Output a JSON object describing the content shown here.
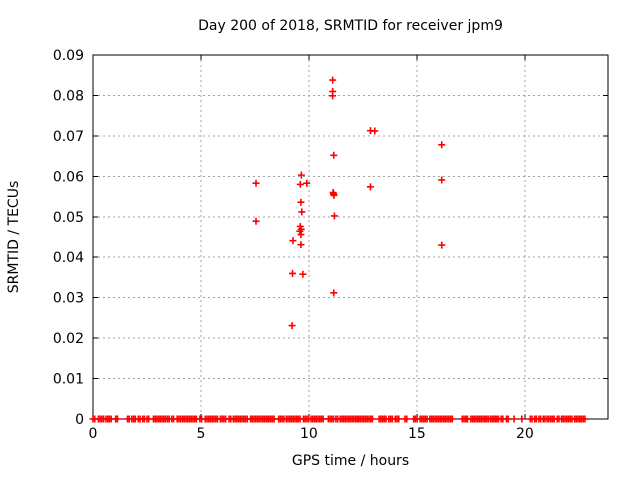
{
  "chart_data": {
    "type": "scatter",
    "title": "Day 200 of 2018, SRMTID for receiver jpm9",
    "xlabel": "GPS time / hours",
    "ylabel": "SRMTID / TECUs",
    "xlim": [
      0,
      23.85
    ],
    "ylim": [
      0,
      0.09
    ],
    "x_ticks": [
      0,
      5,
      10,
      15,
      20
    ],
    "x_tick_labels": [
      "0",
      "5",
      "10",
      "15",
      "20"
    ],
    "y_ticks": [
      0,
      0.01,
      0.02,
      0.03,
      0.04,
      0.05,
      0.06,
      0.07,
      0.08,
      0.09
    ],
    "y_tick_labels": [
      "0",
      "0.01",
      "0.02",
      "0.03",
      "0.04",
      "0.05",
      "0.06",
      "0.07",
      "0.08",
      "0.09"
    ],
    "grid": true,
    "legend": "none",
    "marker": "plus",
    "marker_color": "#ff0000",
    "grid_color": "#a0a0a0",
    "border_color": "#000000",
    "points": [
      [
        7.55,
        0.0583
      ],
      [
        7.55,
        0.0489
      ],
      [
        9.22,
        0.0231
      ],
      [
        9.24,
        0.036
      ],
      [
        9.72,
        0.0358
      ],
      [
        9.26,
        0.0441
      ],
      [
        9.63,
        0.0431
      ],
      [
        9.58,
        0.0464
      ],
      [
        9.6,
        0.0476
      ],
      [
        9.64,
        0.0469
      ],
      [
        9.63,
        0.0456
      ],
      [
        9.67,
        0.0512
      ],
      [
        9.63,
        0.0536
      ],
      [
        9.6,
        0.058
      ],
      [
        9.9,
        0.0583
      ],
      [
        9.65,
        0.0603
      ],
      [
        11.1,
        0.0838
      ],
      [
        11.1,
        0.081
      ],
      [
        11.1,
        0.0799
      ],
      [
        11.15,
        0.0652
      ],
      [
        11.12,
        0.056
      ],
      [
        11.14,
        0.0557
      ],
      [
        11.16,
        0.0553
      ],
      [
        11.18,
        0.0502
      ],
      [
        11.15,
        0.0312
      ],
      [
        12.85,
        0.0713
      ],
      [
        12.85,
        0.0574
      ],
      [
        13.05,
        0.0712
      ],
      [
        16.15,
        0.0678
      ],
      [
        16.15,
        0.0591
      ],
      [
        16.15,
        0.043
      ]
    ],
    "baseline": {
      "y": 0,
      "segments": [
        [
          0.0,
          0.1
        ],
        [
          0.25,
          0.5
        ],
        [
          0.6,
          0.85
        ],
        [
          1.05,
          1.15
        ],
        [
          1.6,
          1.7
        ],
        [
          1.8,
          2.0
        ],
        [
          2.1,
          2.2
        ],
        [
          2.3,
          2.4
        ],
        [
          2.5,
          2.65
        ],
        [
          2.8,
          3.4
        ],
        [
          3.45,
          3.55
        ],
        [
          3.65,
          3.8
        ],
        [
          3.9,
          4.1
        ],
        [
          4.15,
          4.85
        ],
        [
          4.95,
          5.1
        ],
        [
          5.2,
          5.8
        ],
        [
          5.9,
          6.2
        ],
        [
          6.3,
          6.4
        ],
        [
          6.5,
          7.2
        ],
        [
          7.3,
          8.1
        ],
        [
          8.15,
          8.45
        ],
        [
          8.6,
          8.9
        ],
        [
          8.95,
          9.65
        ],
        [
          9.75,
          10.0
        ],
        [
          10.1,
          10.7
        ],
        [
          10.9,
          11.15
        ],
        [
          11.25,
          11.35
        ],
        [
          11.45,
          11.55
        ],
        [
          11.6,
          12.25
        ],
        [
          12.3,
          12.95
        ],
        [
          13.25,
          13.6
        ],
        [
          13.7,
          13.9
        ],
        [
          14.0,
          14.2
        ],
        [
          14.45,
          14.6
        ],
        [
          14.85,
          15.05
        ],
        [
          15.15,
          15.5
        ],
        [
          15.6,
          16.65
        ],
        [
          17.1,
          17.35
        ],
        [
          17.5,
          18.25
        ],
        [
          18.3,
          18.36
        ],
        [
          18.4,
          18.5
        ],
        [
          18.55,
          18.65
        ],
        [
          18.7,
          18.8
        ],
        [
          18.9,
          19.05
        ],
        [
          19.15,
          19.25
        ],
        [
          19.5,
          19.52
        ],
        [
          19.86,
          19.9
        ],
        [
          20.25,
          20.35
        ],
        [
          20.45,
          20.55
        ],
        [
          20.65,
          20.75
        ],
        [
          20.85,
          20.95
        ],
        [
          21.03,
          21.12
        ],
        [
          21.2,
          21.4
        ],
        [
          21.5,
          21.6
        ],
        [
          21.7,
          22.25
        ],
        [
          22.3,
          22.85
        ]
      ]
    }
  }
}
